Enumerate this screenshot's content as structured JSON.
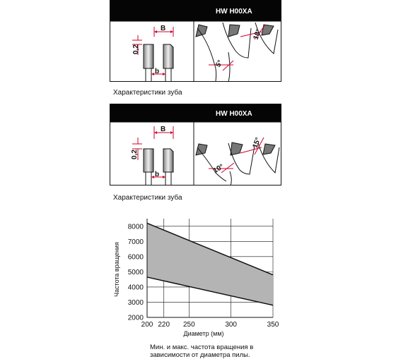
{
  "panels": [
    {
      "title": "HW H00XA",
      "dim_top": "B",
      "dim_left": "0,2",
      "dim_bottom": "b",
      "angle_top": "18°",
      "angle_bottom": "5°",
      "caption": "Характеристики зуба"
    },
    {
      "title": "HW H00XA",
      "dim_top": "B",
      "dim_left": "0,2",
      "dim_bottom": "b",
      "angle_top": "15°",
      "angle_bottom": "10°",
      "caption": "Характеристики зуба"
    }
  ],
  "chart_data": {
    "type": "area",
    "xlabel": "Диаметр (мм)",
    "ylabel": "Частота вращения",
    "xticks": [
      200,
      220,
      250,
      300,
      350
    ],
    "yticks": [
      2000,
      3000,
      4000,
      5000,
      6000,
      7000,
      8000
    ],
    "xlim": [
      200,
      350
    ],
    "ylim": [
      2000,
      8500
    ],
    "grid": true,
    "series": [
      {
        "x": [
          200,
          350
        ],
        "values": [
          8200,
          4800
        ]
      },
      {
        "x": [
          200,
          350
        ],
        "values": [
          4650,
          2800
        ]
      }
    ],
    "fill_color": "#b4b4b4"
  },
  "note": "Мин. и макс. частота вращения в зависимости от диаметра пилы."
}
